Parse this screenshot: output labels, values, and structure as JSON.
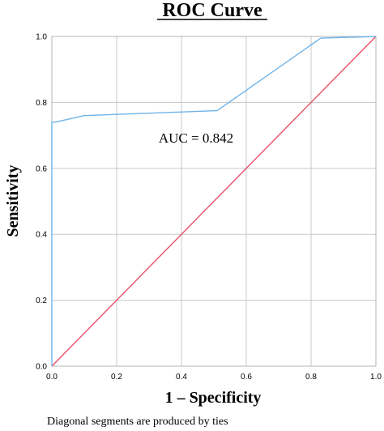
{
  "chart_data": {
    "type": "line",
    "title": "ROC Curve",
    "xlabel": "1 – Specificity",
    "ylabel": "Sensitivity",
    "xlim": [
      0,
      1
    ],
    "ylim": [
      0,
      1
    ],
    "xticks": [
      "0.0",
      "0.2",
      "0.4",
      "0.6",
      "0.8",
      "1.0"
    ],
    "yticks": [
      "0.0",
      "0.2",
      "0.4",
      "0.6",
      "0.8",
      "1.0"
    ],
    "grid": true,
    "legend": "none",
    "annotation": "AUC = 0.842",
    "footnote": "Diagonal segments are produced by ties",
    "series": [
      {
        "role": "roc-curve",
        "color": "#6fb3e8",
        "x": [
          0.0,
          0.0,
          0.0,
          0.01,
          0.1,
          0.51,
          0.83,
          1.0
        ],
        "y": [
          0.0,
          0.74,
          0.74,
          0.74,
          0.76,
          0.775,
          0.995,
          1.0
        ]
      },
      {
        "role": "reference-line",
        "color": "#e8506a",
        "x": [
          0.0,
          1.0
        ],
        "y": [
          0.0,
          1.0
        ]
      }
    ]
  }
}
